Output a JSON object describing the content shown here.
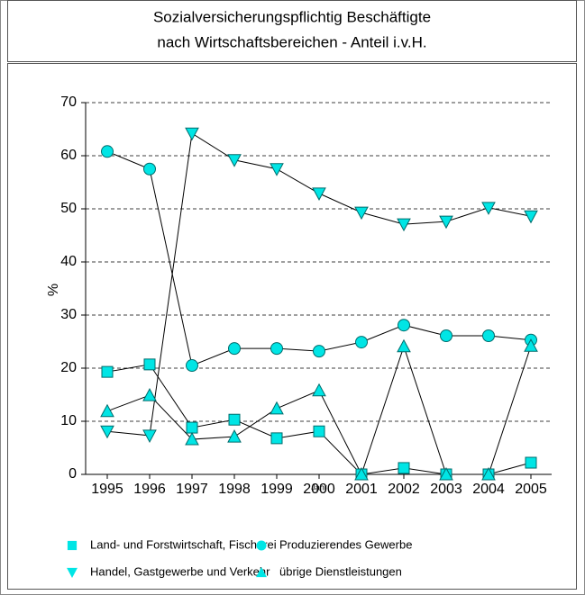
{
  "chart_data": {
    "type": "line",
    "title": [
      "Sozialversicherungspflichtig Beschäftigte",
      "nach Wirtschaftsbereichen - Anteil i.v.H."
    ],
    "xlabel": "Jahr",
    "ylabel": "%",
    "categories": [
      "1995",
      "1996",
      "1997",
      "1998",
      "1999",
      "2000",
      "2001",
      "2002",
      "2003",
      "2004",
      "2005"
    ],
    "ylim": [
      0,
      70
    ],
    "yticks": [
      0,
      10,
      20,
      30,
      40,
      50,
      60,
      70
    ],
    "grid": true,
    "series": [
      {
        "name": "Land- und Forstwirtschaft, Fischerei",
        "color": "#00e5e5",
        "marker": "square",
        "values": [
          19.3,
          20.7,
          8.8,
          10.3,
          6.8,
          8.1,
          0,
          1.2,
          0,
          0,
          2.2
        ]
      },
      {
        "name": "Produzierendes Gewerbe",
        "color": "#00e5e5",
        "marker": "circle",
        "values": [
          60.8,
          57.5,
          20.5,
          23.7,
          23.7,
          23.2,
          24.9,
          28.1,
          26.1,
          26.1,
          25.3
        ]
      },
      {
        "name": "Handel, Gastgewerbe und Verkehr",
        "color": "#00e5e5",
        "marker": "triangle-down",
        "values": [
          8.1,
          7.3,
          64.2,
          59.2,
          57.5,
          52.9,
          49.3,
          47.1,
          47.6,
          50.2,
          48.6
        ]
      },
      {
        "name": "übrige Dienstleistungen",
        "color": "#00e5e5",
        "marker": "triangle-up",
        "values": [
          11.9,
          14.9,
          6.6,
          7.1,
          12.4,
          15.8,
          0,
          24.1,
          0,
          0,
          24.2
        ]
      }
    ]
  }
}
